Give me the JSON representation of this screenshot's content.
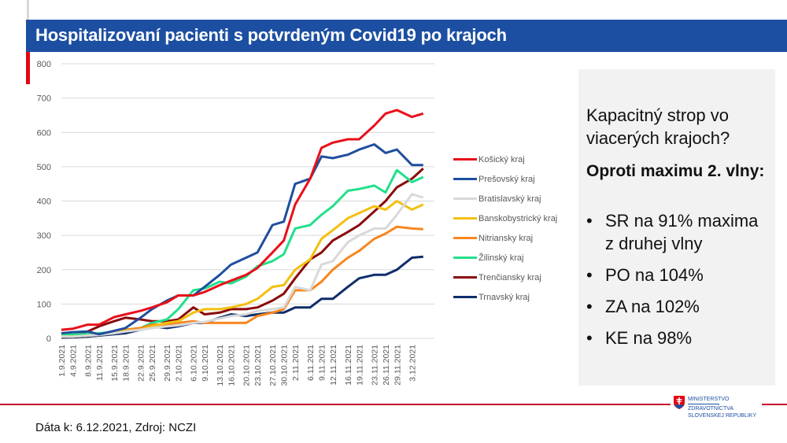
{
  "header": {
    "title": "Hospitalizovaní pacienti s potvrdeným Covid19 po krajoch"
  },
  "colors": {
    "title_bar": "#1c4fa1",
    "accent_red": "#e30613"
  },
  "chart_data": {
    "type": "line",
    "title": "",
    "xlabel": "",
    "ylabel": "",
    "ylim": [
      0,
      800
    ],
    "yticks": [
      "0",
      "100",
      "200",
      "300",
      "400",
      "500",
      "600",
      "700",
      "800"
    ],
    "grid": true,
    "legend_position": "right",
    "x": [
      "1.9.2021",
      "4.9.2021",
      "8.9.2021",
      "11.9.2021",
      "15.9.2021",
      "18.9.2021",
      "22.9.2021",
      "25.9.2021",
      "29.9.2021",
      "2.10.2021",
      "6.10.2021",
      "9.10.2021",
      "13.10.2021",
      "16.10.2021",
      "20.10.2021",
      "23.10.2021",
      "27.10.2021",
      "30.10.2021",
      "2.11.2021",
      "6.11.2021",
      "9.11.2021",
      "12.11.2021",
      "16.11.2021",
      "19.11.2021",
      "23.11.2021",
      "26.11.2021",
      "29.11.2021",
      "3.12.2021",
      "6.12.2021"
    ],
    "xtick_labels": [
      "1.9.2021",
      "4.9.2021",
      "8.9.2021",
      "11.9.2021",
      "15.9.2021",
      "18.9.2021",
      "22.9.2021",
      "25.9.2021",
      "29.9.2021",
      "2.10.2021",
      "6.10.2021",
      "9.10.2021",
      "13.10.2021",
      "16.10.2021",
      "20.10.2021",
      "23.10.2021",
      "27.10.2021",
      "30.10.2021",
      "2.11.2021",
      "6.11.2021",
      "9.11.2021",
      "12.11.2021",
      "16.11.2021",
      "19.11.2021",
      "23.11.2021",
      "26.11.2021",
      "29.11.2021",
      "3.12.2021"
    ],
    "series": [
      {
        "name": "Košický kraj",
        "color": "#e8101a",
        "values": [
          25,
          28,
          40,
          40,
          62,
          70,
          80,
          90,
          105,
          125,
          125,
          135,
          155,
          168,
          185,
          205,
          250,
          285,
          390,
          465,
          555,
          570,
          580,
          580,
          620,
          655,
          665,
          645,
          655
        ]
      },
      {
        "name": "Prešovský kraj",
        "color": "#1f4e9e",
        "values": [
          15,
          18,
          20,
          12,
          22,
          30,
          60,
          85,
          110,
          125,
          125,
          150,
          185,
          215,
          235,
          250,
          330,
          340,
          450,
          465,
          530,
          525,
          535,
          550,
          565,
          540,
          550,
          505,
          505
        ]
      },
      {
        "name": "Bratislavský kraj",
        "color": "#d9d9d9",
        "values": [
          5,
          5,
          8,
          10,
          15,
          20,
          25,
          30,
          35,
          38,
          45,
          48,
          58,
          65,
          70,
          80,
          85,
          90,
          150,
          140,
          215,
          225,
          280,
          300,
          320,
          320,
          360,
          420,
          410
        ]
      },
      {
        "name": "Banskobystrický kraj",
        "color": "#f2c010",
        "values": [
          5,
          5,
          8,
          10,
          15,
          22,
          25,
          35,
          45,
          50,
          75,
          85,
          85,
          90,
          100,
          115,
          150,
          155,
          200,
          230,
          290,
          315,
          350,
          365,
          385,
          375,
          400,
          375,
          390
        ]
      },
      {
        "name": "Nitriansky kraj",
        "color": "#f7861e",
        "values": [
          5,
          5,
          8,
          10,
          18,
          25,
          30,
          40,
          40,
          45,
          50,
          45,
          45,
          45,
          45,
          65,
          75,
          85,
          140,
          140,
          165,
          200,
          235,
          255,
          290,
          305,
          325,
          320,
          318
        ]
      },
      {
        "name": "Žilinský kraj",
        "color": "#22e08a",
        "values": [
          10,
          12,
          12,
          15,
          18,
          25,
          30,
          45,
          55,
          85,
          140,
          145,
          165,
          160,
          180,
          210,
          225,
          245,
          320,
          330,
          360,
          385,
          430,
          435,
          445,
          425,
          490,
          455,
          470
        ]
      },
      {
        "name": "Trenčiansky kraj",
        "color": "#8b0a0a",
        "values": [
          8,
          10,
          20,
          35,
          50,
          60,
          55,
          50,
          50,
          55,
          90,
          70,
          75,
          85,
          85,
          90,
          110,
          130,
          175,
          230,
          250,
          285,
          310,
          330,
          370,
          400,
          440,
          465,
          495
        ]
      },
      {
        "name": "Trnavský kraj",
        "color": "#0f2d6b",
        "values": [
          2,
          3,
          5,
          8,
          12,
          15,
          25,
          35,
          30,
          35,
          45,
          45,
          60,
          70,
          65,
          70,
          75,
          75,
          90,
          90,
          115,
          115,
          150,
          175,
          185,
          185,
          200,
          235,
          238
        ]
      }
    ]
  },
  "panel": {
    "heading": "Kapacitný strop vo viacerých krajoch?",
    "bold": "Oproti maximu 2. vlny:",
    "bullet": "•",
    "items": [
      "SR na 91% maxima z druhej vlny",
      "PO na 104%",
      "ZA na 102%",
      "KE na 98%"
    ]
  },
  "footer": {
    "source": "Dáta k: 6.12.2021, Zdroj: NCZI"
  },
  "logo": {
    "line1": "MINISTERSTVO",
    "line2": "ZDRAVOTNÍCTVA",
    "line3": "SLOVENSKEJ REPUBLIKY"
  }
}
